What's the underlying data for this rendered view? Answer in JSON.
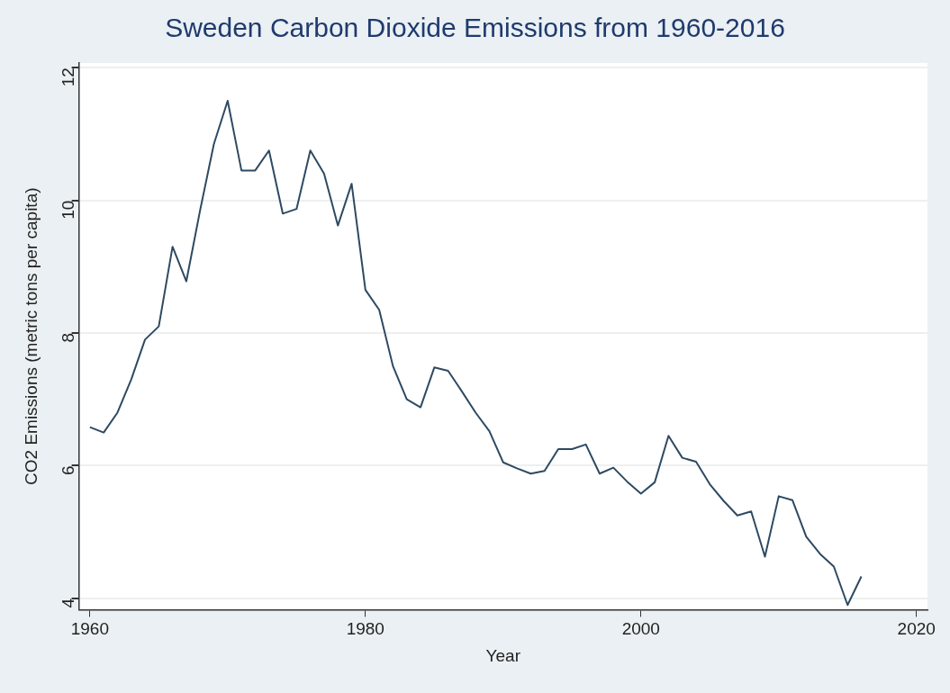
{
  "chart_data": {
    "type": "line",
    "title": "Sweden Carbon Dioxide Emissions from 1960-2016",
    "xlabel": "Year",
    "ylabel": "CO2 Emissions (metric tons per capita)",
    "x": [
      1960,
      1961,
      1962,
      1963,
      1964,
      1965,
      1966,
      1967,
      1968,
      1969,
      1970,
      1971,
      1972,
      1973,
      1974,
      1975,
      1976,
      1977,
      1978,
      1979,
      1980,
      1981,
      1982,
      1983,
      1984,
      1985,
      1986,
      1987,
      1988,
      1989,
      1990,
      1991,
      1992,
      1993,
      1994,
      1995,
      1996,
      1997,
      1998,
      1999,
      2000,
      2001,
      2002,
      2003,
      2004,
      2005,
      2006,
      2007,
      2008,
      2009,
      2010,
      2011,
      2012,
      2013,
      2014,
      2015,
      2016
    ],
    "series": [
      {
        "color": "#2e4a62",
        "values": [
          6.58,
          6.5,
          6.8,
          7.3,
          7.9,
          8.1,
          9.3,
          8.78,
          9.85,
          10.85,
          11.5,
          10.45,
          10.45,
          10.75,
          9.8,
          9.87,
          10.75,
          10.4,
          9.62,
          10.25,
          8.65,
          8.35,
          7.5,
          7.0,
          6.88,
          7.48,
          7.43,
          7.12,
          6.8,
          6.52,
          6.05,
          5.96,
          5.88,
          5.92,
          6.25,
          6.25,
          6.32,
          5.88,
          5.97,
          5.76,
          5.58,
          5.75,
          6.45,
          6.12,
          6.06,
          5.72,
          5.47,
          5.25,
          5.31,
          4.63,
          5.54,
          5.48,
          4.93,
          4.67,
          4.48,
          3.9,
          4.33
        ]
      }
    ],
    "xlim": [
      1959.2,
      2020.8
    ],
    "xticks": [
      1960,
      1980,
      2000,
      2020
    ],
    "ylim": [
      3.83,
      12.07
    ],
    "yticks": [
      4,
      6,
      8,
      10,
      12
    ],
    "grid": "y",
    "legend": false,
    "marker": "none",
    "line_style": "solid"
  }
}
